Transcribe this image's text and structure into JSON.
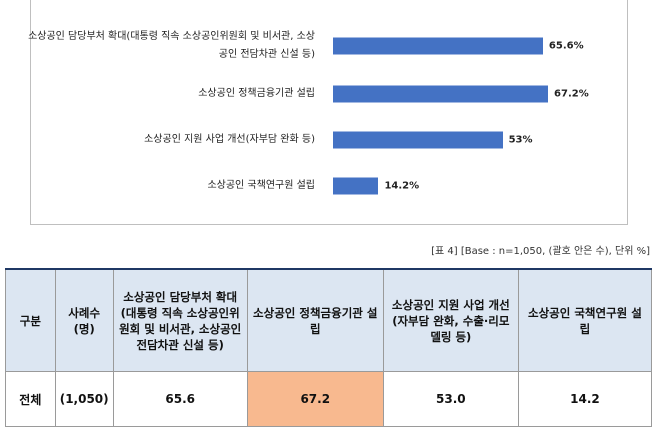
{
  "chart_data": {
    "type": "bar",
    "orientation": "horizontal",
    "categories": [
      "소상공인 담당부처 확대(대통령 직속 소상공인위원회 및 비서관, 소상공인 전담차관 신설 등)",
      "소상공인 정책금융기관 설립",
      "소상공인 지원 사업 개선(자부담 완화 등)",
      "소상공인 국책연구원 설립"
    ],
    "values": [
      65.6,
      67.2,
      53,
      14.2
    ],
    "value_labels": [
      "65.6%",
      "67.2%",
      "53%",
      "14.2%"
    ],
    "color": "#4472c4"
  },
  "caption": "[표 4] [Base : n=1,050, (괄호 안은 수), 단위 %]",
  "table": {
    "header": [
      "구분",
      "사례수 (명)",
      "소상공인 담당부처 확대 (대통령 직속 소상공인위원회 및 비서관, 소상공인 전담차관 신설 등)",
      "소상공인 정책금융기관 설립",
      "소상공인 지원 사업 개선(자부담 완화, 수출·리모델링 등)",
      "소상공인 국책연구원 설립"
    ],
    "rows": [
      [
        "전체",
        "(1,050)",
        "65.6",
        "67.2",
        "53.0",
        "14.2"
      ]
    ],
    "highlight_color": "#f8b98f"
  }
}
